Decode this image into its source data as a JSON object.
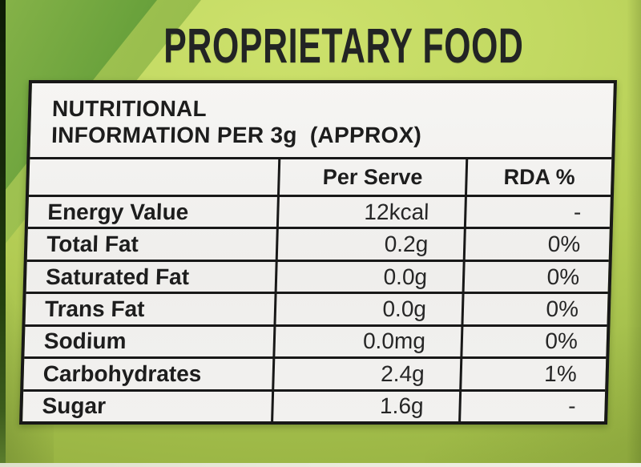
{
  "page": {
    "title": "PROPRIETARY FOOD"
  },
  "table": {
    "header_line1": "NUTRITIONAL",
    "header_line2": "INFORMATION PER 3g  (APPROX)",
    "columns": {
      "label": "",
      "per_serve": "Per Serve",
      "rda": "RDA %"
    },
    "rows": [
      {
        "label": "Energy Value",
        "per_serve": "12kcal",
        "rda": "-"
      },
      {
        "label": "Total Fat",
        "per_serve": "0.2g",
        "rda": "0%"
      },
      {
        "label": "Saturated Fat",
        "per_serve": "0.0g",
        "rda": "0%"
      },
      {
        "label": "Trans Fat",
        "per_serve": "0.0g",
        "rda": "0%"
      },
      {
        "label": "Sodium",
        "per_serve": "0.0mg",
        "rda": "0%"
      },
      {
        "label": "Carbohydrates",
        "per_serve": "2.4g",
        "rda": "1%"
      },
      {
        "label": "Sugar",
        "per_serve": "1.6g",
        "rda": "-"
      }
    ]
  },
  "colors": {
    "background_green": "#b3cc54",
    "background_light": "#cde16c",
    "background_dark": "#9ab544",
    "wedge_dark_green": "#6aa23c",
    "wedge_mid_green": "#98bd4d",
    "left_strip_dark": "#16290b",
    "table_background": "#f2f1ef",
    "table_border": "#181818",
    "text_dark": "#1d1d1d",
    "bottom_strip": "#e9ebdc"
  }
}
